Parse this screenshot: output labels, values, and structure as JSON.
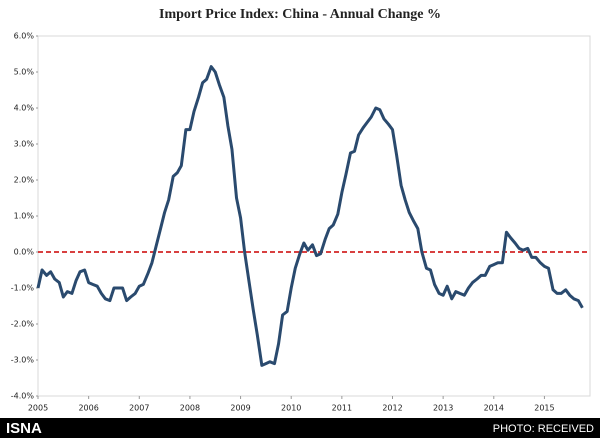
{
  "chart_data": {
    "type": "line",
    "title": "Import Price Index: China - Annual Change %",
    "x": [
      2005,
      2005.08,
      2005.17,
      2005.25,
      2005.33,
      2005.42,
      2005.5,
      2005.58,
      2005.67,
      2005.75,
      2005.83,
      2005.92,
      2006,
      2006.08,
      2006.17,
      2006.25,
      2006.33,
      2006.42,
      2006.5,
      2006.58,
      2006.67,
      2006.75,
      2006.83,
      2006.92,
      2007,
      2007.08,
      2007.17,
      2007.25,
      2007.33,
      2007.42,
      2007.5,
      2007.58,
      2007.67,
      2007.75,
      2007.83,
      2007.92,
      2008,
      2008.08,
      2008.17,
      2008.25,
      2008.33,
      2008.42,
      2008.5,
      2008.58,
      2008.67,
      2008.75,
      2008.83,
      2008.92,
      2009,
      2009.08,
      2009.17,
      2009.25,
      2009.33,
      2009.42,
      2009.5,
      2009.58,
      2009.67,
      2009.75,
      2009.83,
      2009.92,
      2010,
      2010.08,
      2010.17,
      2010.25,
      2010.33,
      2010.42,
      2010.5,
      2010.58,
      2010.67,
      2010.75,
      2010.83,
      2010.92,
      2011,
      2011.08,
      2011.17,
      2011.25,
      2011.33,
      2011.42,
      2011.5,
      2011.58,
      2011.67,
      2011.75,
      2011.83,
      2011.92,
      2012,
      2012.08,
      2012.17,
      2012.25,
      2012.33,
      2012.42,
      2012.5,
      2012.58,
      2012.67,
      2012.75,
      2012.83,
      2012.92,
      2013,
      2013.08,
      2013.17,
      2013.25,
      2013.33,
      2013.42,
      2013.5,
      2013.58,
      2013.67,
      2013.75,
      2013.83,
      2013.92,
      2014,
      2014.08,
      2014.17,
      2014.25,
      2014.33,
      2014.42,
      2014.5,
      2014.58,
      2014.67,
      2014.75,
      2014.83,
      2014.92,
      2015,
      2015.08,
      2015.17,
      2015.25,
      2015.33,
      2015.42,
      2015.5,
      2015.58,
      2015.67,
      2015.75
    ],
    "series": [
      {
        "color": "#2a4a6e",
        "values": [
          -1.0,
          -0.5,
          -0.65,
          -0.55,
          -0.75,
          -0.85,
          -1.25,
          -1.1,
          -1.15,
          -0.8,
          -0.55,
          -0.5,
          -0.85,
          -0.9,
          -0.95,
          -1.15,
          -1.3,
          -1.35,
          -1.0,
          -1.0,
          -1.0,
          -1.35,
          -1.25,
          -1.15,
          -0.95,
          -0.9,
          -0.6,
          -0.3,
          0.15,
          0.65,
          1.1,
          1.45,
          2.1,
          2.2,
          2.4,
          3.4,
          3.4,
          3.9,
          4.3,
          4.7,
          4.8,
          5.15,
          5.0,
          4.65,
          4.3,
          3.5,
          2.85,
          1.5,
          0.95,
          0.0,
          -0.85,
          -1.6,
          -2.3,
          -3.15,
          -3.1,
          -3.05,
          -3.1,
          -2.55,
          -1.75,
          -1.65,
          -1.0,
          -0.45,
          -0.05,
          0.25,
          0.05,
          0.2,
          -0.1,
          -0.05,
          0.35,
          0.65,
          0.75,
          1.05,
          1.65,
          2.15,
          2.75,
          2.8,
          3.25,
          3.45,
          3.6,
          3.75,
          4.0,
          3.95,
          3.7,
          3.55,
          3.4,
          2.7,
          1.85,
          1.45,
          1.1,
          0.85,
          0.65,
          0.0,
          -0.45,
          -0.5,
          -0.9,
          -1.15,
          -1.2,
          -0.95,
          -1.3,
          -1.1,
          -1.15,
          -1.2,
          -1.0,
          -0.85,
          -0.75,
          -0.65,
          -0.65,
          -0.4,
          -0.35,
          -0.3,
          -0.3,
          0.55,
          0.4,
          0.25,
          0.1,
          0.05,
          0.1,
          -0.15,
          -0.15,
          -0.3,
          -0.4,
          -0.45,
          -1.05,
          -1.15,
          -1.15,
          -1.05,
          -1.2,
          -1.3,
          -1.35,
          -1.55
        ]
      }
    ],
    "xlim": [
      2005,
      2015.9
    ],
    "xticks": [
      2005,
      2006,
      2007,
      2008,
      2009,
      2010,
      2011,
      2012,
      2013,
      2014,
      2015
    ],
    "ylim": [
      -4,
      6
    ],
    "yticks": [
      {
        "value": -4,
        "label": "-4.0%"
      },
      {
        "value": -3,
        "label": "-3.0%"
      },
      {
        "value": -2,
        "label": "-2.0%"
      },
      {
        "value": -1,
        "label": "-1.0%"
      },
      {
        "value": 0,
        "label": "0.0%"
      },
      {
        "value": 1,
        "label": "1.0%"
      },
      {
        "value": 2,
        "label": "2.0%"
      },
      {
        "value": 3,
        "label": "3.0%"
      },
      {
        "value": 4,
        "label": "4.0%"
      },
      {
        "value": 5,
        "label": "5.0%"
      },
      {
        "value": 6,
        "label": "6.0%"
      }
    ],
    "zero_line": {
      "value": 0,
      "color": "#cc0000"
    }
  },
  "footer": {
    "brand": "ISNA",
    "credit": "PHOTO: RECEIVED"
  }
}
